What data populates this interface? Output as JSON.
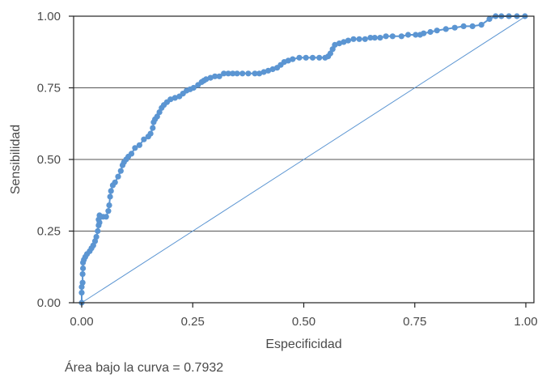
{
  "chart_data": {
    "type": "scatter",
    "title": "",
    "xlabel": "Especificidad",
    "ylabel": "Sensibilidad",
    "xlim": [
      0,
      1
    ],
    "ylim": [
      0,
      1
    ],
    "xticks": [
      "0.00",
      "0.25",
      "0.50",
      "0.75",
      "1.00"
    ],
    "yticks": [
      "0.00",
      "0.25",
      "0.50",
      "0.75",
      "1.00"
    ],
    "grid": "horizontal",
    "legend": "none",
    "annotation": "Área bajo la curva = 0.7932",
    "colors": {
      "points": "#5b95d2",
      "reference_line": "#5b95d2",
      "grid": "#555555",
      "axis": "#222222"
    },
    "reference_line": {
      "x": [
        0,
        1
      ],
      "y": [
        0,
        1
      ]
    },
    "series": [
      {
        "x": [
          0.0,
          0.0,
          0.0,
          0.002,
          0.002,
          0.003,
          0.003,
          0.005,
          0.008,
          0.012,
          0.018,
          0.022,
          0.026,
          0.03,
          0.033,
          0.036,
          0.038,
          0.038,
          0.04,
          0.04,
          0.042,
          0.048,
          0.055,
          0.06,
          0.062,
          0.064,
          0.066,
          0.07,
          0.075,
          0.082,
          0.088,
          0.092,
          0.095,
          0.1,
          0.105,
          0.112,
          0.12,
          0.13,
          0.14,
          0.15,
          0.155,
          0.16,
          0.162,
          0.165,
          0.17,
          0.175,
          0.18,
          0.185,
          0.192,
          0.2,
          0.21,
          0.22,
          0.228,
          0.236,
          0.244,
          0.252,
          0.262,
          0.27,
          0.275,
          0.28,
          0.29,
          0.3,
          0.31,
          0.32,
          0.33,
          0.34,
          0.35,
          0.362,
          0.375,
          0.39,
          0.4,
          0.41,
          0.42,
          0.43,
          0.44,
          0.448,
          0.456,
          0.465,
          0.475,
          0.49,
          0.505,
          0.52,
          0.535,
          0.548,
          0.555,
          0.56,
          0.565,
          0.57,
          0.58,
          0.59,
          0.6,
          0.612,
          0.625,
          0.638,
          0.65,
          0.66,
          0.672,
          0.685,
          0.7,
          0.72,
          0.735,
          0.752,
          0.762,
          0.77,
          0.785,
          0.8,
          0.82,
          0.84,
          0.86,
          0.88,
          0.9,
          0.918,
          0.932,
          0.945,
          0.962,
          0.98,
          0.998
        ],
        "y": [
          0.0,
          0.035,
          0.055,
          0.07,
          0.1,
          0.12,
          0.14,
          0.15,
          0.16,
          0.17,
          0.18,
          0.19,
          0.2,
          0.215,
          0.23,
          0.25,
          0.27,
          0.29,
          0.305,
          0.28,
          0.3,
          0.3,
          0.3,
          0.32,
          0.34,
          0.37,
          0.39,
          0.41,
          0.42,
          0.44,
          0.46,
          0.48,
          0.49,
          0.5,
          0.51,
          0.52,
          0.54,
          0.55,
          0.57,
          0.58,
          0.59,
          0.61,
          0.63,
          0.64,
          0.65,
          0.665,
          0.68,
          0.69,
          0.7,
          0.71,
          0.715,
          0.72,
          0.73,
          0.74,
          0.745,
          0.75,
          0.76,
          0.77,
          0.775,
          0.78,
          0.785,
          0.79,
          0.79,
          0.8,
          0.8,
          0.8,
          0.8,
          0.8,
          0.8,
          0.8,
          0.8,
          0.805,
          0.81,
          0.815,
          0.82,
          0.83,
          0.84,
          0.845,
          0.85,
          0.855,
          0.855,
          0.855,
          0.855,
          0.855,
          0.86,
          0.87,
          0.885,
          0.9,
          0.905,
          0.91,
          0.915,
          0.92,
          0.92,
          0.92,
          0.925,
          0.925,
          0.925,
          0.93,
          0.93,
          0.93,
          0.935,
          0.935,
          0.935,
          0.94,
          0.945,
          0.95,
          0.955,
          0.96,
          0.965,
          0.965,
          0.97,
          0.99,
          1.0,
          1.0,
          1.0,
          1.0,
          1.0
        ]
      }
    ]
  }
}
